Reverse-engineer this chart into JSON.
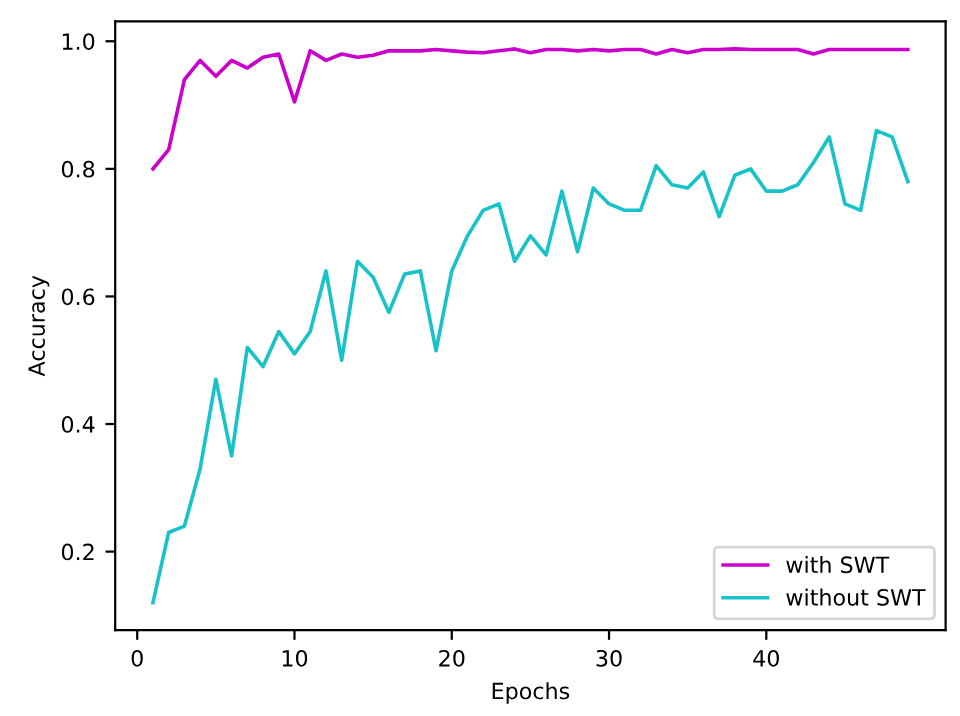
{
  "chart_data": {
    "type": "line",
    "xlabel": "Epochs",
    "ylabel": "Accuracy",
    "x": [
      1,
      2,
      3,
      4,
      5,
      6,
      7,
      8,
      9,
      10,
      11,
      12,
      13,
      14,
      15,
      16,
      17,
      18,
      19,
      20,
      21,
      22,
      23,
      24,
      25,
      26,
      27,
      28,
      29,
      30,
      31,
      32,
      33,
      34,
      35,
      36,
      37,
      38,
      39,
      40,
      41,
      42,
      43,
      44,
      45,
      46,
      47,
      48,
      49
    ],
    "series": [
      {
        "name": "with SWT",
        "color": "#cc00cc",
        "values": [
          0.8,
          0.83,
          0.94,
          0.97,
          0.945,
          0.97,
          0.958,
          0.975,
          0.98,
          0.905,
          0.985,
          0.97,
          0.98,
          0.975,
          0.978,
          0.985,
          0.985,
          0.985,
          0.987,
          0.985,
          0.983,
          0.982,
          0.985,
          0.988,
          0.982,
          0.987,
          0.987,
          0.985,
          0.987,
          0.985,
          0.987,
          0.987,
          0.98,
          0.987,
          0.982,
          0.987,
          0.987,
          0.988,
          0.987,
          0.987,
          0.987,
          0.987,
          0.98,
          0.987,
          0.987,
          0.987,
          0.987,
          0.987,
          0.987
        ]
      },
      {
        "name": "without SWT",
        "color": "#17c3c8",
        "values": [
          0.12,
          0.23,
          0.24,
          0.33,
          0.47,
          0.35,
          0.52,
          0.49,
          0.545,
          0.51,
          0.545,
          0.64,
          0.5,
          0.655,
          0.63,
          0.575,
          0.635,
          0.64,
          0.515,
          0.64,
          0.695,
          0.735,
          0.745,
          0.655,
          0.695,
          0.665,
          0.765,
          0.67,
          0.77,
          0.745,
          0.735,
          0.735,
          0.805,
          0.775,
          0.77,
          0.795,
          0.725,
          0.79,
          0.8,
          0.765,
          0.765,
          0.775,
          0.81,
          0.85,
          0.745,
          0.735,
          0.86,
          0.85,
          0.78
        ]
      }
    ],
    "xlim": [
      -1.4,
      51.4
    ],
    "xticks": [
      0,
      10,
      20,
      30,
      40
    ],
    "ylim": [
      0.077,
      1.031
    ],
    "yticks": [
      0.2,
      0.4,
      0.6,
      0.8,
      {
        "value": 1,
        "label": "1.0"
      }
    ],
    "grid": false,
    "legend": "bottom right"
  }
}
